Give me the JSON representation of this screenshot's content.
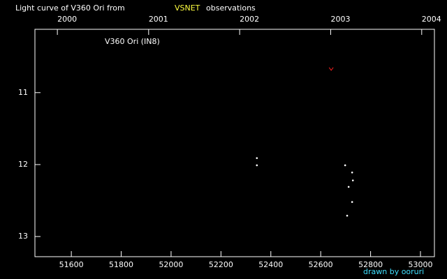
{
  "chart_data": {
    "type": "scatter",
    "title": [
      "Light curve of V360 Ori from",
      "VSNET",
      "observations"
    ],
    "annotation": "V360 Ori (IN8)",
    "footer": "drawn by ooruri",
    "xlim": [
      51454,
      53056
    ],
    "xticks": [
      51600,
      51800,
      52000,
      52200,
      52400,
      52600,
      52800,
      53000
    ],
    "x2ticks": [
      {
        "value": 51544,
        "label": "2000"
      },
      {
        "value": 51910,
        "label": "2001"
      },
      {
        "value": 52275,
        "label": "2002"
      },
      {
        "value": 52640,
        "label": "2003"
      },
      {
        "value": 53005,
        "label": "2004"
      }
    ],
    "ylim": [
      13.28,
      10.12
    ],
    "yticks": [
      11,
      12,
      13
    ],
    "series": [
      {
        "color": "#ffffff",
        "marker": "dot",
        "x": [
          52344,
          52344,
          52698,
          52726,
          52729,
          52712,
          52726,
          52706
        ],
        "values": [
          11.91,
          12.01,
          12.01,
          12.11,
          12.22,
          12.31,
          12.52,
          12.71
        ]
      },
      {
        "color": "#ff2020",
        "marker": "v",
        "x": [
          52642
        ],
        "values": [
          10.67
        ]
      }
    ]
  }
}
